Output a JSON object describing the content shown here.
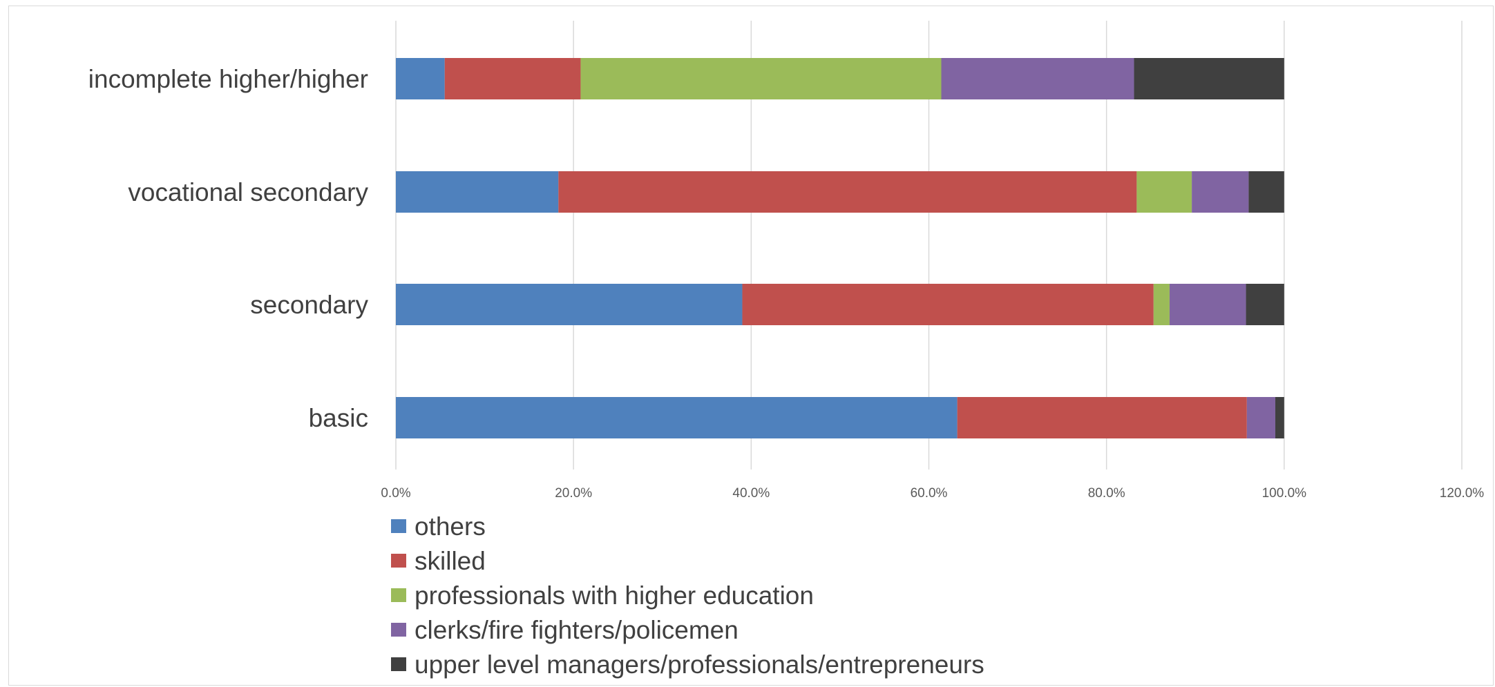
{
  "chart_data": {
    "type": "bar",
    "orientation": "horizontal",
    "stacked": true,
    "title": "",
    "xlabel": "",
    "ylabel": "",
    "xlim": [
      0,
      120
    ],
    "x_tick_labels": [
      "0.0%",
      "20.0%",
      "40.0%",
      "60.0%",
      "80.0%",
      "100.0%",
      "120.0%"
    ],
    "grid": true,
    "legend_position": "bottom",
    "categories": [
      "incomplete higher/higher",
      "vocational secondary",
      "secondary",
      "basic"
    ],
    "series": [
      {
        "name": "others",
        "color": "#4F81BD",
        "values": [
          5.5,
          18.3,
          39.0,
          63.2
        ]
      },
      {
        "name": "skilled",
        "color": "#C0504D",
        "values": [
          15.3,
          65.1,
          46.3,
          32.6
        ]
      },
      {
        "name": "professionals with higher education",
        "color": "#9BBB59",
        "values": [
          40.6,
          6.2,
          1.8,
          0.0
        ]
      },
      {
        "name": "clerks/fire fighters/policemen",
        "color": "#8064A2",
        "values": [
          21.7,
          6.4,
          8.6,
          3.2
        ]
      },
      {
        "name": "upper level managers/professionals/entrepreneurs",
        "color": "#404040",
        "values": [
          16.9,
          4.0,
          4.3,
          1.0
        ]
      }
    ]
  }
}
